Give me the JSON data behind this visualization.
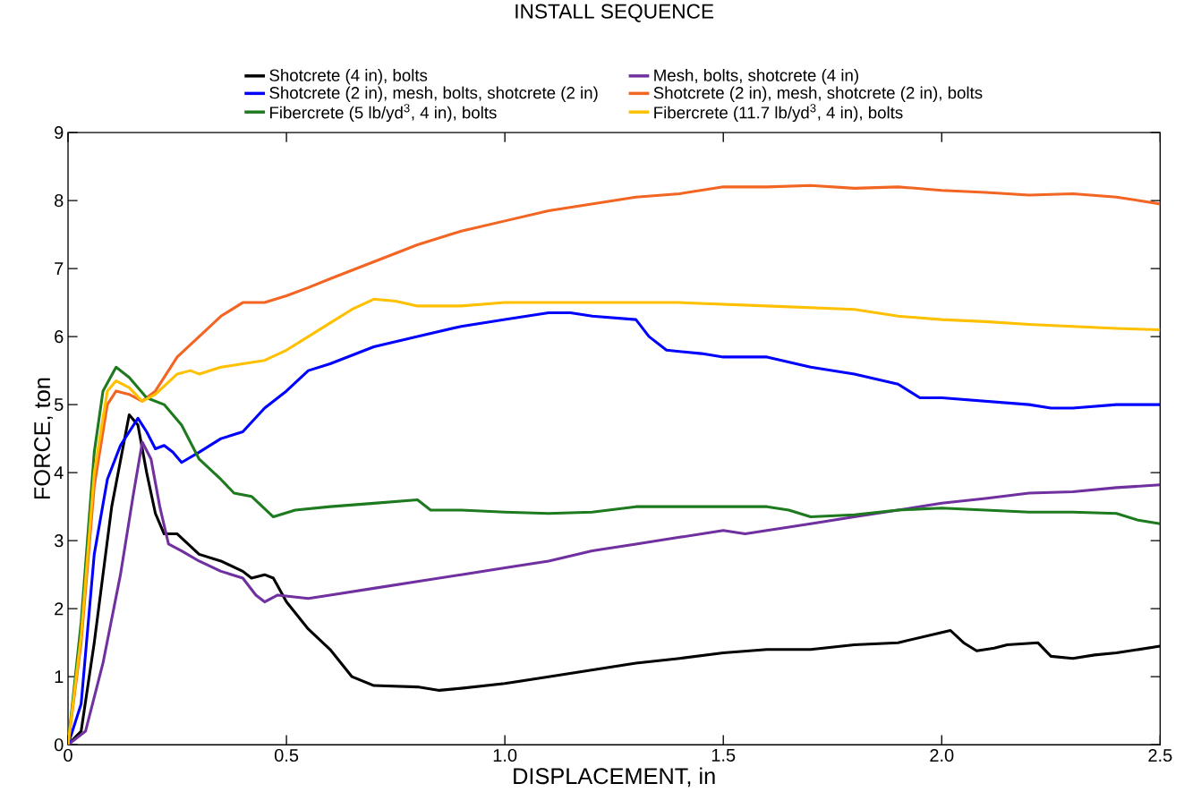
{
  "chart_data": {
    "type": "line",
    "title": "INSTALL SEQUENCE",
    "xlabel": "DISPLACEMENT, in",
    "ylabel": "FORCE, ton",
    "xlim": [
      0,
      2.5
    ],
    "ylim": [
      0,
      9
    ],
    "xticks": [
      0,
      0.5,
      {
        "value": 1,
        "label": "1.0"
      },
      1.5,
      {
        "value": 2,
        "label": "2.0"
      },
      2.5
    ],
    "yticks": [
      0,
      1,
      2,
      3,
      4,
      5,
      6,
      7,
      8,
      9
    ],
    "legend": "top",
    "marker": "none",
    "line_style": "solid",
    "series": [
      {
        "name": "Shotcrete (4 in), bolts",
        "color": "#000000",
        "x": [
          0,
          0.03,
          0.06,
          0.1,
          0.14,
          0.16,
          0.18,
          0.2,
          0.22,
          0.25,
          0.3,
          0.35,
          0.4,
          0.42,
          0.45,
          0.47,
          0.5,
          0.55,
          0.6,
          0.65,
          0.7,
          0.8,
          0.85,
          0.9,
          1.0,
          1.1,
          1.2,
          1.3,
          1.4,
          1.5,
          1.6,
          1.7,
          1.8,
          1.9,
          2.0,
          2.02,
          2.05,
          2.08,
          2.12,
          2.15,
          2.22,
          2.25,
          2.3,
          2.35,
          2.4,
          2.5
        ],
        "values": [
          0,
          0.2,
          1.5,
          3.5,
          4.85,
          4.7,
          4.0,
          3.4,
          3.1,
          3.1,
          2.8,
          2.7,
          2.55,
          2.45,
          2.5,
          2.45,
          2.1,
          1.7,
          1.4,
          1.0,
          0.87,
          0.85,
          0.8,
          0.83,
          0.9,
          1.0,
          1.1,
          1.2,
          1.27,
          1.35,
          1.4,
          1.4,
          1.47,
          1.5,
          1.65,
          1.68,
          1.5,
          1.38,
          1.42,
          1.47,
          1.5,
          1.3,
          1.27,
          1.32,
          1.35,
          1.45
        ]
      },
      {
        "name": "Mesh, bolts, shotcrete (4 in)",
        "color": "#7030a0",
        "x": [
          0,
          0.04,
          0.08,
          0.12,
          0.15,
          0.17,
          0.19,
          0.21,
          0.23,
          0.26,
          0.3,
          0.35,
          0.4,
          0.43,
          0.45,
          0.48,
          0.55,
          0.6,
          0.7,
          0.8,
          0.9,
          1.0,
          1.1,
          1.2,
          1.3,
          1.4,
          1.5,
          1.55,
          1.6,
          1.7,
          1.8,
          1.9,
          2.0,
          2.1,
          2.2,
          2.3,
          2.4,
          2.5
        ],
        "values": [
          0,
          0.2,
          1.2,
          2.5,
          3.7,
          4.45,
          4.2,
          3.5,
          2.95,
          2.85,
          2.7,
          2.55,
          2.45,
          2.2,
          2.1,
          2.2,
          2.15,
          2.2,
          2.3,
          2.4,
          2.5,
          2.6,
          2.7,
          2.85,
          2.95,
          3.05,
          3.15,
          3.1,
          3.15,
          3.25,
          3.35,
          3.45,
          3.55,
          3.62,
          3.7,
          3.72,
          3.78,
          3.82
        ]
      },
      {
        "name": "Shotcrete (2 in), mesh, bolts, shotcrete (2 in)",
        "color": "#0000ff",
        "x": [
          0,
          0.03,
          0.06,
          0.09,
          0.12,
          0.16,
          0.18,
          0.2,
          0.22,
          0.24,
          0.26,
          0.3,
          0.35,
          0.4,
          0.45,
          0.5,
          0.55,
          0.6,
          0.7,
          0.8,
          0.9,
          1.0,
          1.1,
          1.15,
          1.2,
          1.3,
          1.33,
          1.37,
          1.45,
          1.5,
          1.6,
          1.7,
          1.8,
          1.9,
          1.95,
          2.0,
          2.1,
          2.2,
          2.25,
          2.3,
          2.4,
          2.5
        ],
        "values": [
          0,
          0.6,
          2.8,
          3.9,
          4.4,
          4.8,
          4.6,
          4.35,
          4.4,
          4.3,
          4.15,
          4.3,
          4.5,
          4.6,
          4.95,
          5.2,
          5.5,
          5.6,
          5.85,
          6.0,
          6.15,
          6.25,
          6.35,
          6.35,
          6.3,
          6.25,
          6.0,
          5.8,
          5.75,
          5.7,
          5.7,
          5.55,
          5.45,
          5.3,
          5.1,
          5.1,
          5.05,
          5.0,
          4.95,
          4.95,
          5.0,
          5.0
        ]
      },
      {
        "name": "Shotcrete (2 in), mesh, shotcrete (2 in), bolts",
        "color": "#f26522",
        "x": [
          0,
          0.03,
          0.06,
          0.09,
          0.11,
          0.14,
          0.17,
          0.2,
          0.25,
          0.3,
          0.35,
          0.4,
          0.45,
          0.5,
          0.55,
          0.6,
          0.7,
          0.8,
          0.9,
          1.0,
          1.1,
          1.2,
          1.3,
          1.4,
          1.5,
          1.6,
          1.7,
          1.8,
          1.9,
          2.0,
          2.1,
          2.2,
          2.3,
          2.4,
          2.5
        ],
        "values": [
          0,
          1.5,
          3.8,
          5.0,
          5.2,
          5.15,
          5.05,
          5.2,
          5.7,
          6.0,
          6.3,
          6.5,
          6.5,
          6.6,
          6.72,
          6.85,
          7.1,
          7.35,
          7.55,
          7.7,
          7.85,
          7.95,
          8.05,
          8.1,
          8.2,
          8.2,
          8.22,
          8.18,
          8.2,
          8.15,
          8.12,
          8.08,
          8.1,
          8.05,
          7.95
        ]
      },
      {
        "name": "Fibercrete (5 lb/yd$^{3}$, 4 in), bolts",
        "color": "#1e7a1e",
        "x": [
          0,
          0.03,
          0.06,
          0.08,
          0.11,
          0.14,
          0.18,
          0.22,
          0.26,
          0.3,
          0.35,
          0.38,
          0.42,
          0.47,
          0.52,
          0.6,
          0.7,
          0.8,
          0.83,
          0.9,
          1.0,
          1.1,
          1.2,
          1.3,
          1.4,
          1.5,
          1.6,
          1.65,
          1.7,
          1.8,
          1.9,
          2.0,
          2.1,
          2.2,
          2.3,
          2.4,
          2.45,
          2.5
        ],
        "values": [
          0,
          1.8,
          4.3,
          5.2,
          5.55,
          5.4,
          5.1,
          5.0,
          4.7,
          4.2,
          3.9,
          3.7,
          3.65,
          3.35,
          3.45,
          3.5,
          3.55,
          3.6,
          3.45,
          3.45,
          3.42,
          3.4,
          3.42,
          3.5,
          3.5,
          3.5,
          3.5,
          3.45,
          3.35,
          3.38,
          3.45,
          3.48,
          3.45,
          3.42,
          3.42,
          3.4,
          3.3,
          3.25
        ]
      },
      {
        "name": "Fibercrete (11.7 lb/yd$^{3}$, 4 in), bolts",
        "color": "#ffc000",
        "x": [
          0,
          0.03,
          0.06,
          0.09,
          0.11,
          0.14,
          0.17,
          0.2,
          0.25,
          0.28,
          0.3,
          0.35,
          0.4,
          0.45,
          0.5,
          0.55,
          0.6,
          0.65,
          0.7,
          0.75,
          0.8,
          0.9,
          1.0,
          1.2,
          1.4,
          1.6,
          1.8,
          1.9,
          2.0,
          2.1,
          2.2,
          2.3,
          2.4,
          2.5
        ],
        "values": [
          0,
          1.6,
          4.0,
          5.2,
          5.35,
          5.25,
          5.05,
          5.15,
          5.45,
          5.5,
          5.45,
          5.55,
          5.6,
          5.65,
          5.8,
          6.0,
          6.2,
          6.4,
          6.55,
          6.52,
          6.45,
          6.45,
          6.5,
          6.5,
          6.5,
          6.45,
          6.4,
          6.3,
          6.25,
          6.22,
          6.18,
          6.15,
          6.12,
          6.1
        ]
      }
    ]
  }
}
